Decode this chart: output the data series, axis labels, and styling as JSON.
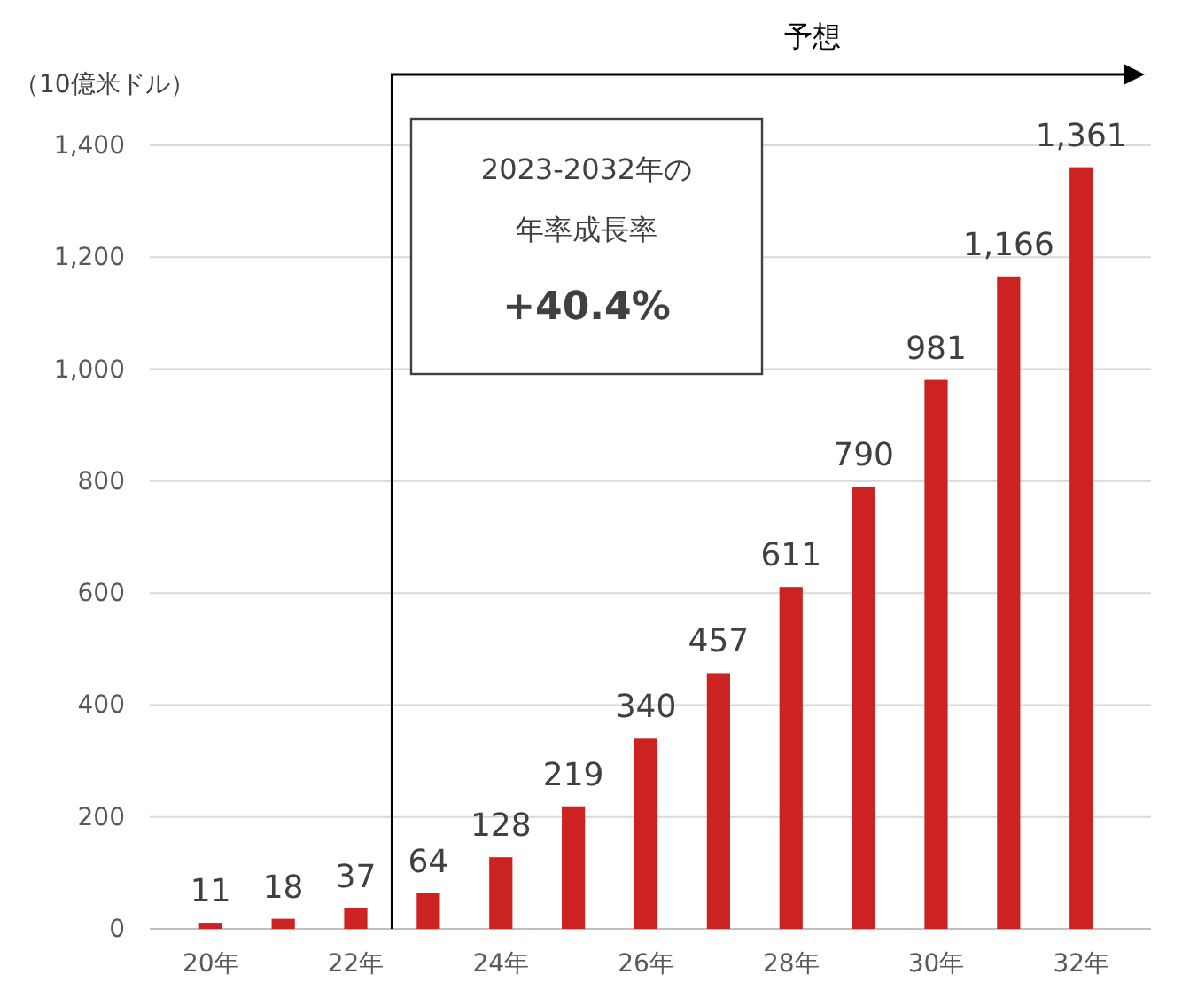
{
  "chart_data": {
    "type": "bar",
    "ylabel": "（10億米ドル）",
    "categories": [
      "20年",
      null,
      "22年",
      null,
      "24年",
      null,
      "26年",
      null,
      "28年",
      null,
      "30年",
      null,
      "32年"
    ],
    "values": [
      11,
      18,
      37,
      64,
      128,
      219,
      340,
      457,
      611,
      790,
      981,
      1166,
      1361
    ],
    "value_labels": [
      "11",
      "18",
      "37",
      "64",
      "128",
      "219",
      "340",
      "457",
      "611",
      "790",
      "981",
      "1,166",
      "1,361"
    ],
    "color": "#cc2222",
    "ylim": [
      0,
      1400
    ],
    "yticks": [
      0,
      200,
      400,
      600,
      800,
      {
        "value": 1000,
        "label": "1,000"
      },
      {
        "value": 1200,
        "label": "1,200"
      },
      {
        "value": 1400,
        "label": "1,400"
      }
    ],
    "grid": "y",
    "annotations": [
      "予想",
      "2023-2032年の",
      "年率成長率",
      "+40.4%"
    ]
  }
}
